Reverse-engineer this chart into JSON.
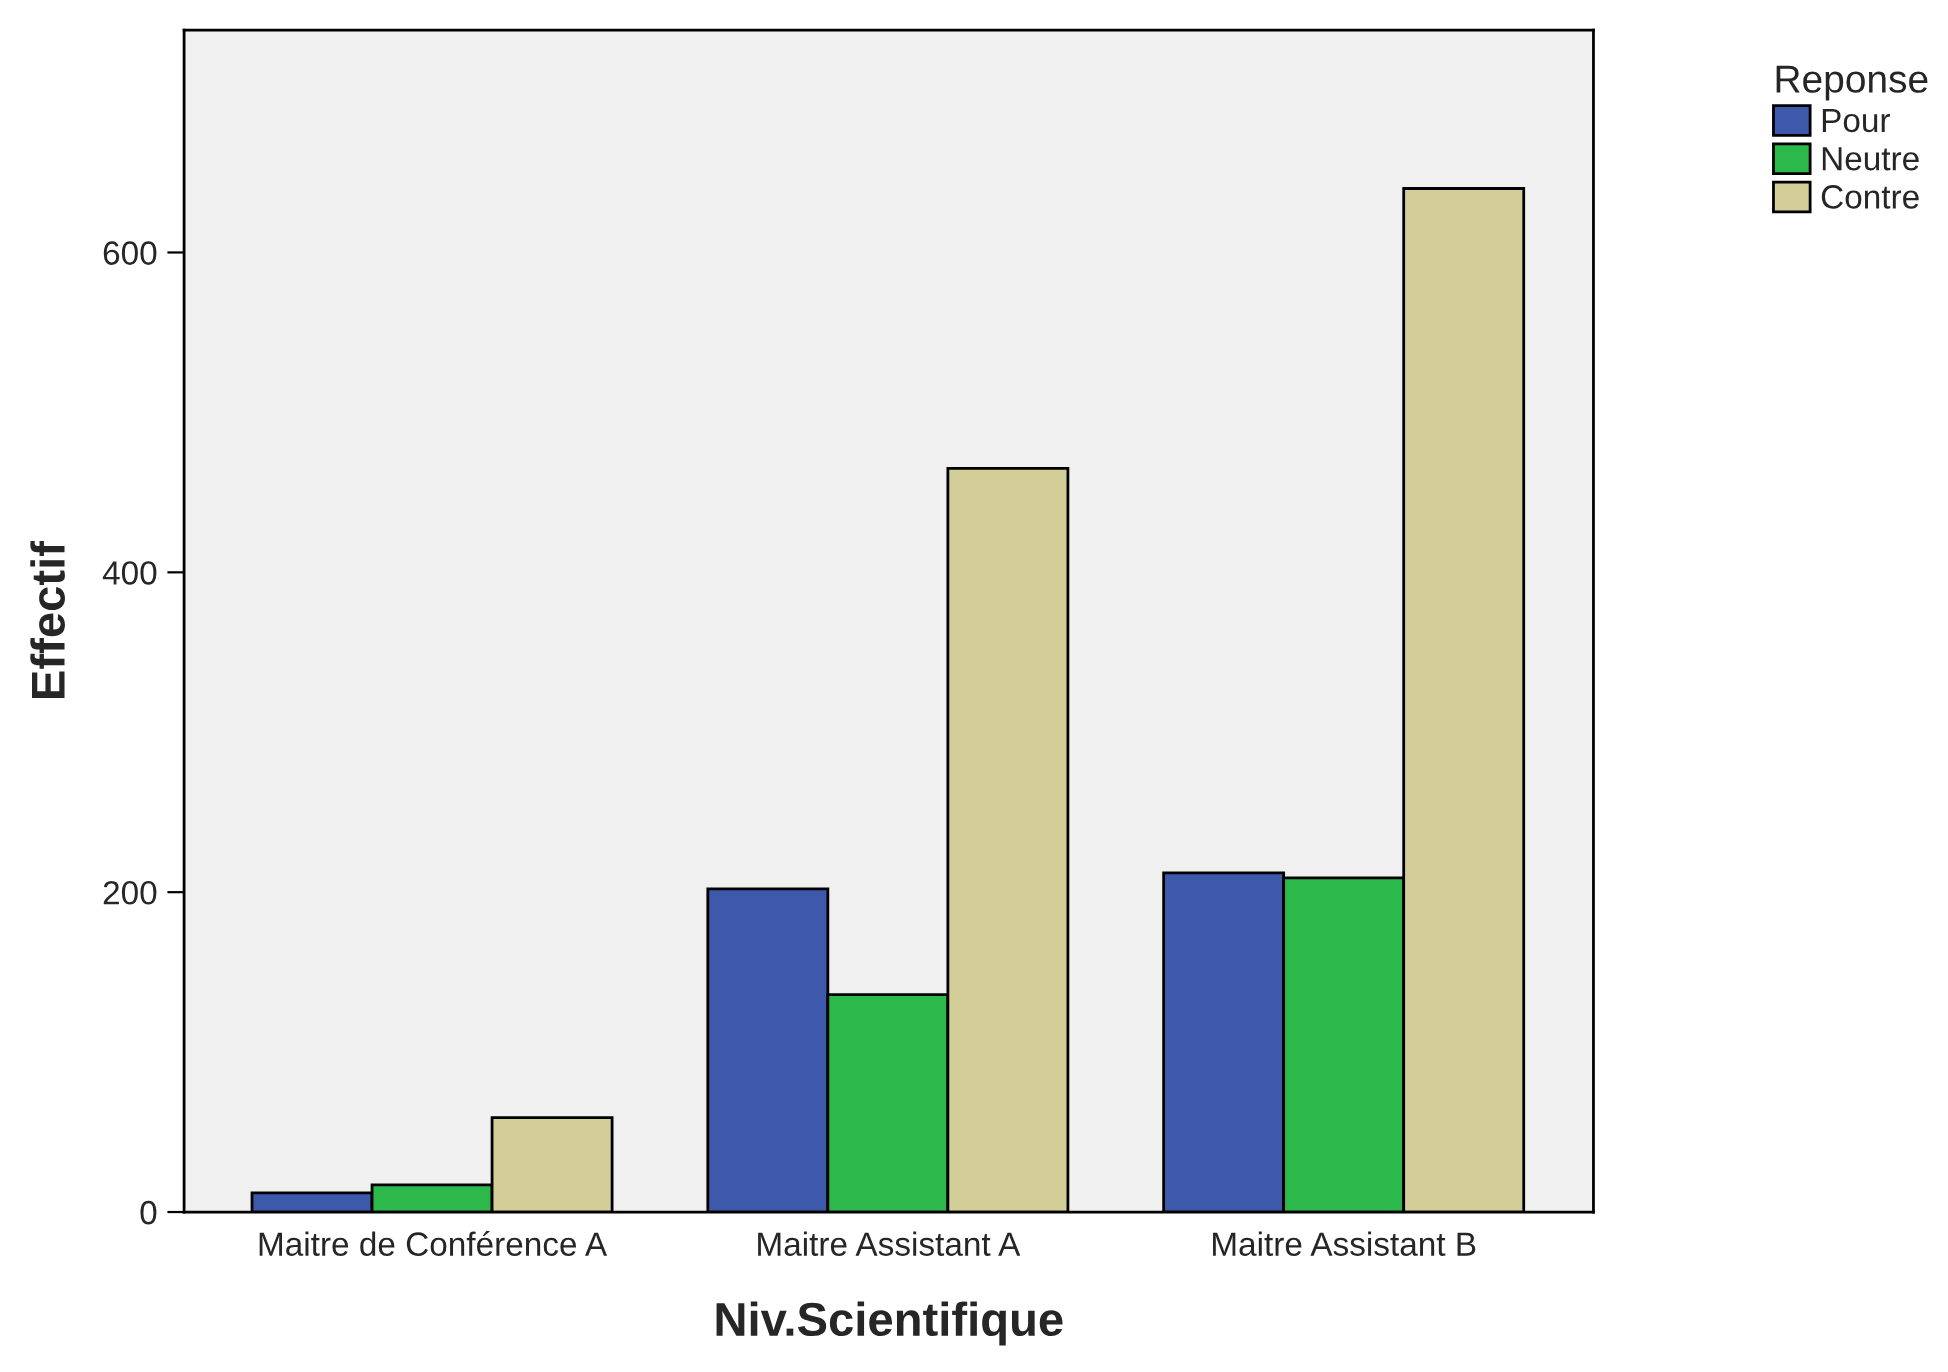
{
  "chart_data": {
    "type": "bar",
    "xlabel": "Niv.Scientifique",
    "ylabel": "Effectif",
    "legend_title": "Reponse",
    "categories": [
      "Maitre de Conférence A",
      "Maitre Assistant A",
      "Maitre Assistant B"
    ],
    "series": [
      {
        "name": "Pour",
        "color": "#3e58ac",
        "values": [
          12,
          202,
          212
        ]
      },
      {
        "name": "Neutre",
        "color": "#2db84b",
        "values": [
          17,
          136,
          209
        ]
      },
      {
        "name": "Contre",
        "color": "#d3ce97",
        "values": [
          59,
          465,
          640
        ]
      }
    ],
    "ylim": [
      0,
      739
    ],
    "yticks": [
      0,
      200,
      400,
      600
    ],
    "grid": false,
    "legend": "top right"
  }
}
